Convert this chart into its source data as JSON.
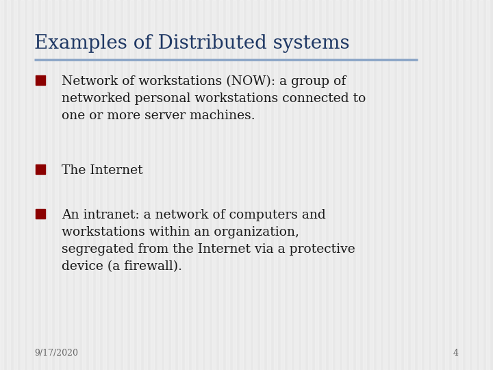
{
  "title": "Examples of Distributed systems",
  "title_color": "#1F3864",
  "title_fontsize": 20,
  "separator_color": "#8FA8C8",
  "background_color": "#E8E8E8",
  "stripe_color": "#F2F2F2",
  "bullet_color": "#8B0000",
  "text_color": "#1a1a1a",
  "bullet_points": [
    "Network of workstations (NOW): a group of\nnetworked personal workstations connected to\none or more server machines.",
    "The Internet",
    "An intranet: a network of computers and\nworkstations within an organization,\nsegregated from the Internet via a protective\ndevice (a firewall)."
  ],
  "body_fontsize": 13.5,
  "footer_date": "9/17/2020",
  "footer_page": "4",
  "footer_fontsize": 9
}
